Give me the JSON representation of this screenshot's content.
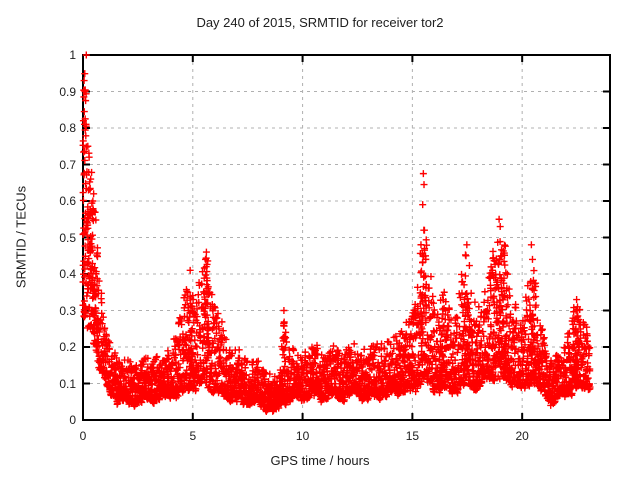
{
  "chart_data": {
    "type": "scatter",
    "title": "Day 240 of 2015, SRMTID for receiver tor2",
    "xlabel": "GPS time / hours",
    "ylabel": "SRMTID / TECUs",
    "xlim": [
      0,
      24
    ],
    "ylim": [
      0,
      1
    ],
    "xticks": [
      {
        "v": 0,
        "label": "0"
      },
      {
        "v": 5,
        "label": "5"
      },
      {
        "v": 10,
        "label": "10"
      },
      {
        "v": 15,
        "label": "15"
      },
      {
        "v": 20,
        "label": "20"
      }
    ],
    "yticks": [
      {
        "v": 0.0,
        "label": "0"
      },
      {
        "v": 0.1,
        "label": "0.1"
      },
      {
        "v": 0.2,
        "label": "0.2"
      },
      {
        "v": 0.3,
        "label": "0.3"
      },
      {
        "v": 0.4,
        "label": "0.4"
      },
      {
        "v": 0.5,
        "label": "0.5"
      },
      {
        "v": 0.6,
        "label": "0.6"
      },
      {
        "v": 0.7,
        "label": "0.7"
      },
      {
        "v": 0.8,
        "label": "0.8"
      },
      {
        "v": 0.9,
        "label": "0.9"
      },
      {
        "v": 1.0,
        "label": "1"
      }
    ],
    "grid": true,
    "legend": "none",
    "marker": {
      "shape": "plus",
      "color": "#ff0000",
      "size": 7
    },
    "colors": {
      "marker": "#ff0000",
      "grid": "#b0b0b0",
      "axis": "#000000",
      "text": "#202020",
      "background": "#ffffff"
    },
    "seed": 1337,
    "sample_step_hours": 0.006,
    "t_range": [
      0.0,
      23.1
    ],
    "concentration_exponent": 1.9,
    "envelope": [
      [
        0.0,
        0.28,
        1.0
      ],
      [
        0.15,
        0.26,
        0.92
      ],
      [
        0.3,
        0.24,
        0.8
      ],
      [
        0.5,
        0.22,
        0.62
      ],
      [
        0.7,
        0.16,
        0.45
      ],
      [
        0.9,
        0.12,
        0.32
      ],
      [
        1.1,
        0.08,
        0.22
      ],
      [
        1.5,
        0.06,
        0.18
      ],
      [
        2.0,
        0.05,
        0.16
      ],
      [
        2.5,
        0.05,
        0.16
      ],
      [
        3.0,
        0.06,
        0.17
      ],
      [
        3.5,
        0.06,
        0.18
      ],
      [
        4.0,
        0.07,
        0.2
      ],
      [
        4.3,
        0.07,
        0.26
      ],
      [
        4.6,
        0.08,
        0.33
      ],
      [
        4.9,
        0.1,
        0.4
      ],
      [
        5.1,
        0.09,
        0.3
      ],
      [
        5.4,
        0.1,
        0.42
      ],
      [
        5.6,
        0.11,
        0.46
      ],
      [
        5.8,
        0.09,
        0.38
      ],
      [
        6.1,
        0.08,
        0.3
      ],
      [
        6.4,
        0.07,
        0.24
      ],
      [
        6.8,
        0.06,
        0.19
      ],
      [
        7.3,
        0.05,
        0.17
      ],
      [
        7.8,
        0.05,
        0.16
      ],
      [
        8.3,
        0.04,
        0.14
      ],
      [
        8.7,
        0.03,
        0.11
      ],
      [
        9.0,
        0.04,
        0.16
      ],
      [
        9.15,
        0.05,
        0.29
      ],
      [
        9.4,
        0.06,
        0.2
      ],
      [
        9.8,
        0.06,
        0.17
      ],
      [
        10.2,
        0.07,
        0.19
      ],
      [
        10.6,
        0.07,
        0.2
      ],
      [
        11.0,
        0.06,
        0.18
      ],
      [
        11.4,
        0.07,
        0.2
      ],
      [
        11.8,
        0.06,
        0.19
      ],
      [
        12.2,
        0.07,
        0.21
      ],
      [
        12.6,
        0.07,
        0.19
      ],
      [
        13.0,
        0.06,
        0.2
      ],
      [
        13.4,
        0.07,
        0.21
      ],
      [
        13.8,
        0.07,
        0.22
      ],
      [
        14.2,
        0.08,
        0.23
      ],
      [
        14.6,
        0.08,
        0.25
      ],
      [
        15.0,
        0.08,
        0.28
      ],
      [
        15.3,
        0.1,
        0.42
      ],
      [
        15.5,
        0.12,
        0.55
      ],
      [
        15.7,
        0.1,
        0.45
      ],
      [
        16.0,
        0.09,
        0.33
      ],
      [
        16.4,
        0.09,
        0.35
      ],
      [
        16.8,
        0.08,
        0.28
      ],
      [
        17.1,
        0.09,
        0.36
      ],
      [
        17.4,
        0.1,
        0.46
      ],
      [
        17.7,
        0.09,
        0.38
      ],
      [
        18.0,
        0.09,
        0.3
      ],
      [
        18.4,
        0.11,
        0.36
      ],
      [
        18.7,
        0.12,
        0.46
      ],
      [
        19.0,
        0.12,
        0.52
      ],
      [
        19.3,
        0.11,
        0.45
      ],
      [
        19.6,
        0.1,
        0.34
      ],
      [
        20.0,
        0.08,
        0.26
      ],
      [
        20.3,
        0.1,
        0.4
      ],
      [
        20.5,
        0.11,
        0.44
      ],
      [
        20.7,
        0.09,
        0.32
      ],
      [
        21.0,
        0.07,
        0.22
      ],
      [
        21.4,
        0.05,
        0.16
      ],
      [
        21.8,
        0.07,
        0.19
      ],
      [
        22.2,
        0.08,
        0.27
      ],
      [
        22.5,
        0.09,
        0.32
      ],
      [
        22.8,
        0.09,
        0.27
      ],
      [
        23.1,
        0.1,
        0.24
      ]
    ],
    "clusters": [
      [
        0.08,
        0.08,
        0.3,
        0.95,
        26
      ],
      [
        0.35,
        0.15,
        0.33,
        0.58,
        40
      ],
      [
        0.6,
        0.1,
        0.25,
        0.45,
        20
      ],
      [
        4.9,
        0.12,
        0.12,
        0.36,
        22
      ],
      [
        5.6,
        0.12,
        0.14,
        0.44,
        26
      ],
      [
        9.15,
        0.06,
        0.08,
        0.28,
        10
      ],
      [
        14.8,
        0.3,
        0.09,
        0.24,
        20
      ],
      [
        15.5,
        0.15,
        0.15,
        0.52,
        30
      ],
      [
        16.4,
        0.15,
        0.12,
        0.33,
        18
      ],
      [
        17.45,
        0.18,
        0.13,
        0.44,
        28
      ],
      [
        18.9,
        0.35,
        0.14,
        0.48,
        55
      ],
      [
        19.2,
        0.15,
        0.13,
        0.42,
        20
      ],
      [
        20.5,
        0.15,
        0.12,
        0.4,
        24
      ],
      [
        22.45,
        0.15,
        0.11,
        0.31,
        26
      ]
    ],
    "outliers": [
      [
        0.15,
        1.0
      ],
      [
        0.05,
        0.93
      ],
      [
        0.09,
        0.9
      ],
      [
        0.04,
        0.885
      ],
      [
        0.12,
        0.875
      ],
      [
        0.06,
        0.845
      ],
      [
        0.1,
        0.825
      ],
      [
        0.02,
        0.82
      ],
      [
        0.22,
        0.75
      ],
      [
        0.28,
        0.72
      ],
      [
        0.18,
        0.68
      ],
      [
        0.35,
        0.66
      ],
      [
        0.25,
        0.63
      ],
      [
        0.45,
        0.6
      ],
      [
        4.88,
        0.41
      ],
      [
        5.62,
        0.46
      ],
      [
        5.58,
        0.44
      ],
      [
        9.15,
        0.3
      ],
      [
        15.5,
        0.675
      ],
      [
        15.53,
        0.645
      ],
      [
        15.47,
        0.59
      ],
      [
        15.55,
        0.52
      ],
      [
        16.45,
        0.35
      ],
      [
        17.48,
        0.48
      ],
      [
        17.44,
        0.45
      ],
      [
        18.95,
        0.55
      ],
      [
        19.0,
        0.53
      ],
      [
        20.42,
        0.48
      ],
      [
        20.47,
        0.44
      ],
      [
        22.48,
        0.33
      ],
      [
        22.52,
        0.31
      ],
      [
        21.3,
        0.04
      ],
      [
        8.8,
        0.03
      ]
    ]
  }
}
